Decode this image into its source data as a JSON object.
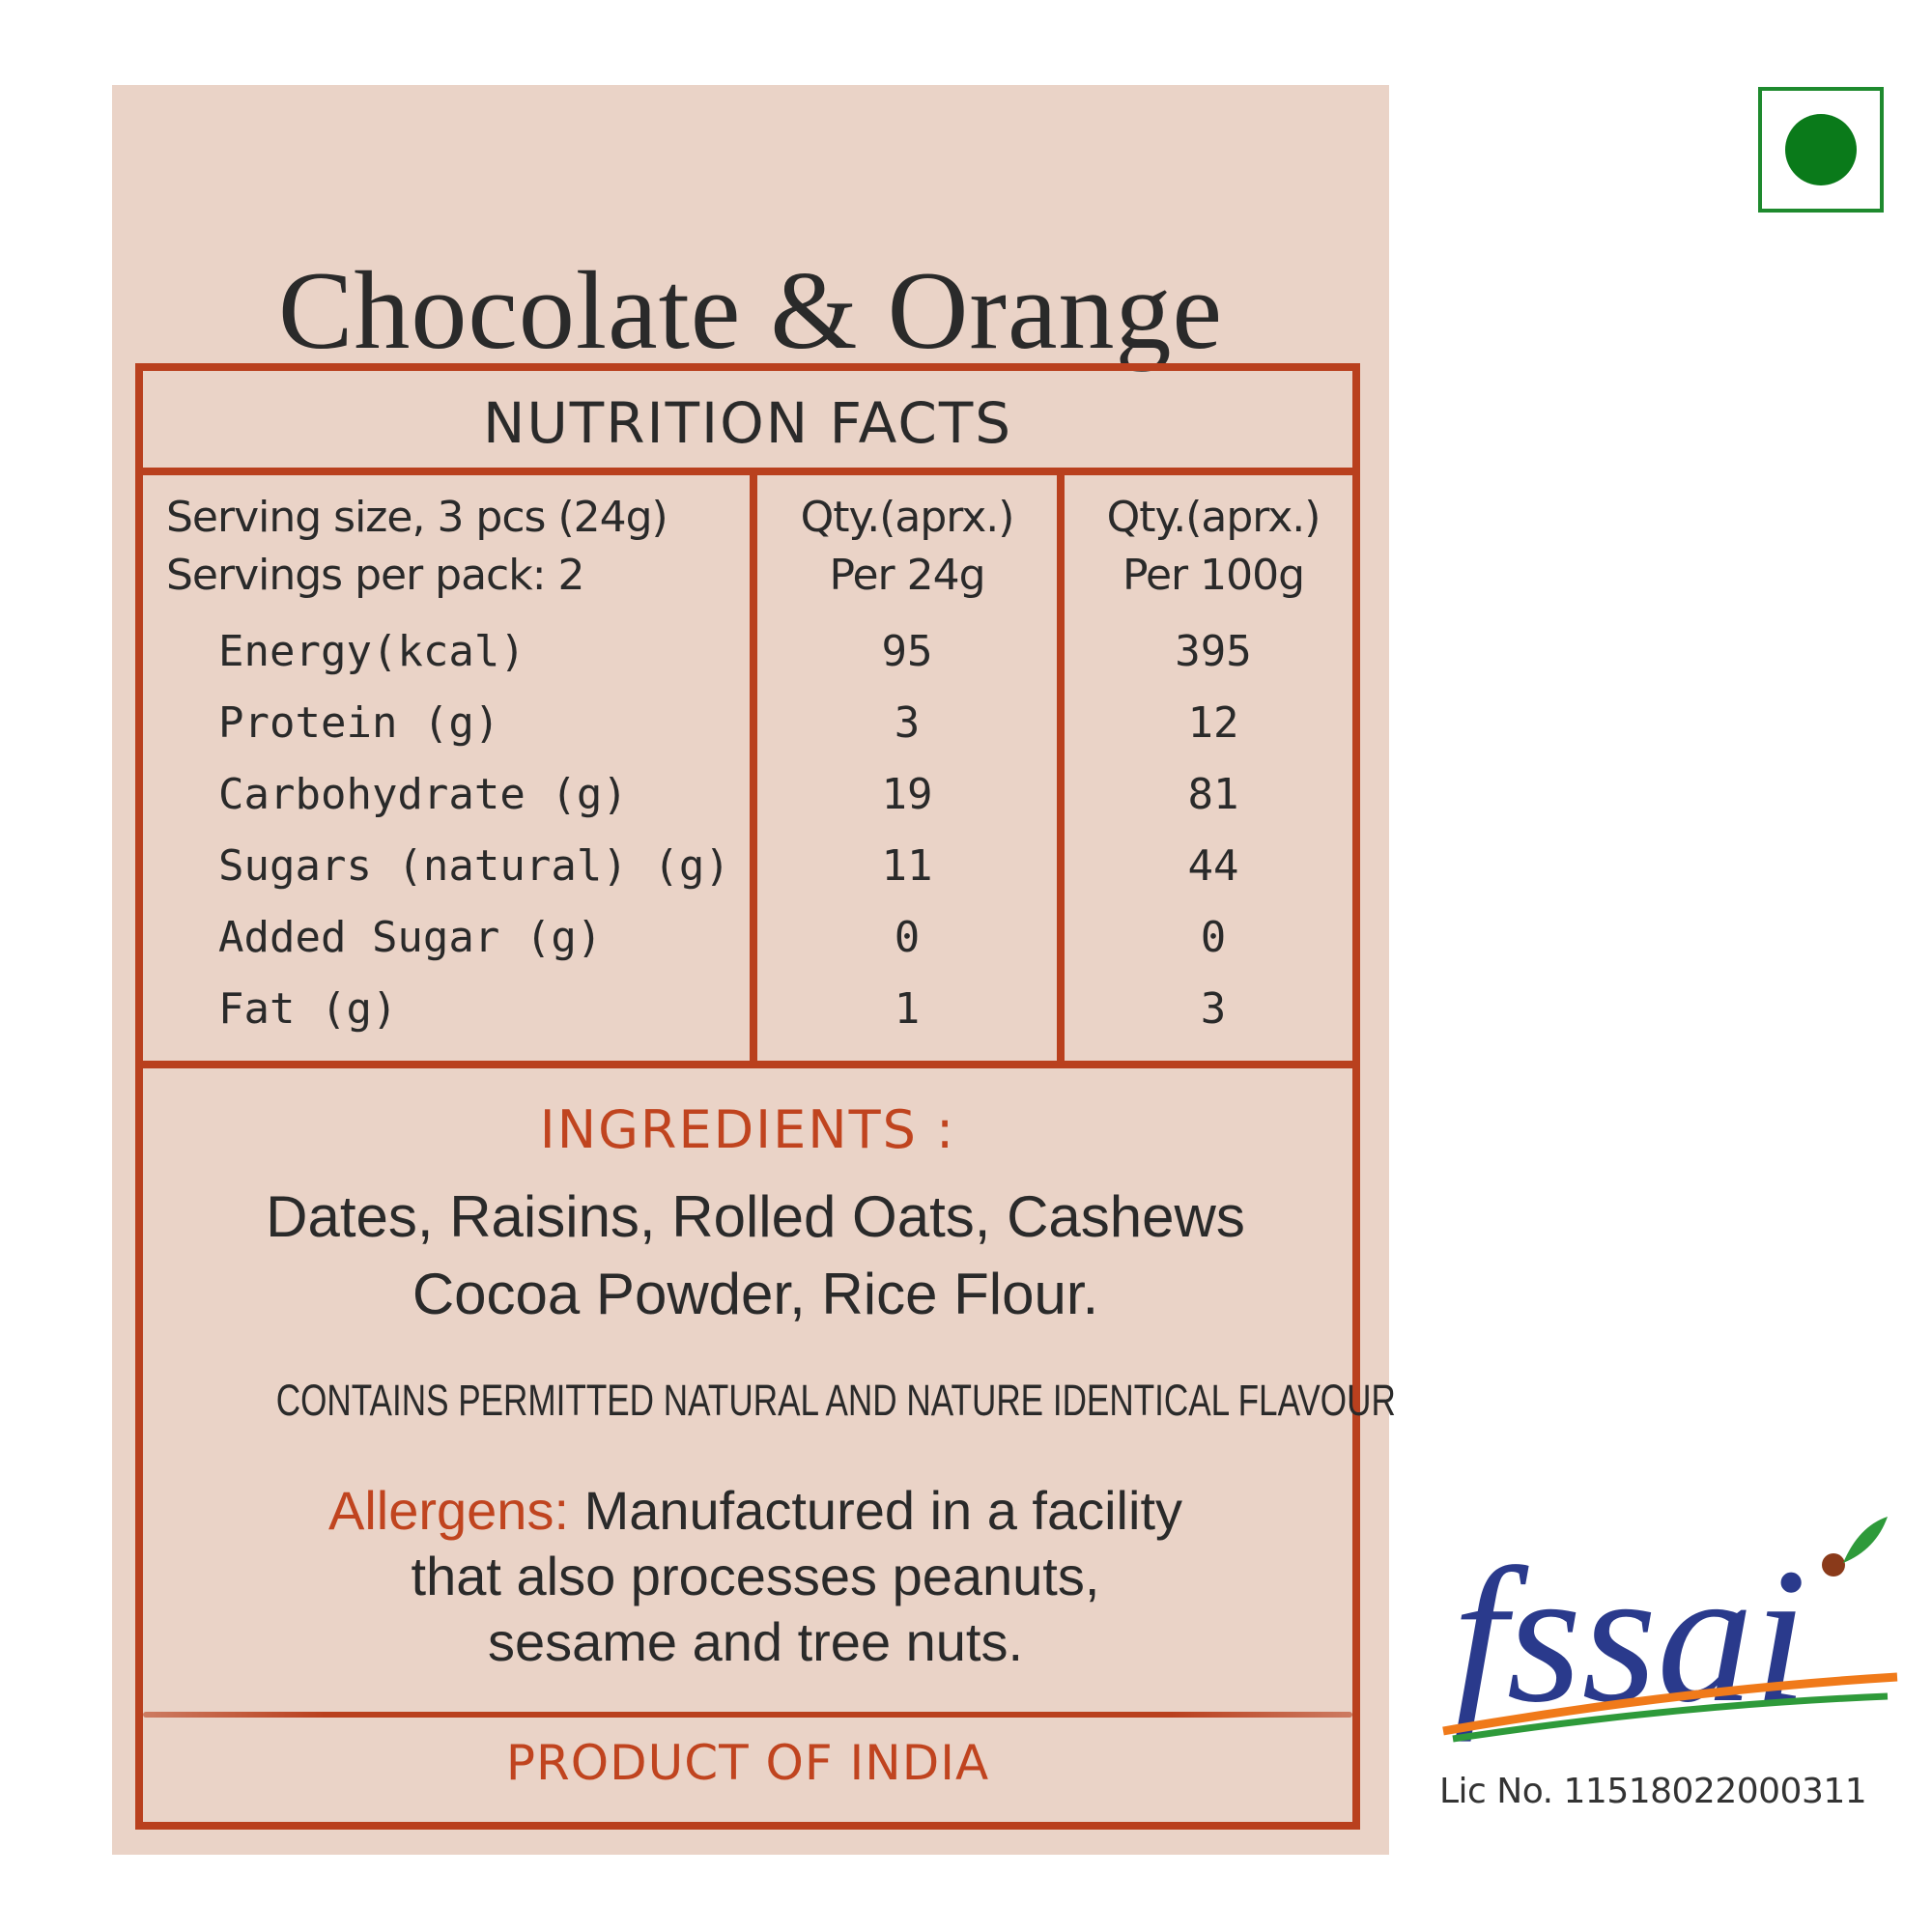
{
  "product_title": "Chocolate & Orange",
  "nutrition": {
    "header": "NUTRITION FACTS",
    "serving_size": "Serving size, 3 pcs (24g)",
    "servings_per_pack": "Servings per pack: 2",
    "col1_line1": "Qty.(aprx.)",
    "col1_line2": "Per 24g",
    "col2_line1": "Qty.(aprx.)",
    "col2_line2": "Per 100g",
    "rows": [
      {
        "name": "Energy(kcal)",
        "per24": "95",
        "per100": "395"
      },
      {
        "name": "Protein (g)",
        "per24": "3",
        "per100": "12"
      },
      {
        "name": "Carbohydrate (g)",
        "per24": "19",
        "per100": "81"
      },
      {
        "name": "Sugars (natural) (g)",
        "per24": "11",
        "per100": "44"
      },
      {
        "name": "Added Sugar (g)",
        "per24": "0",
        "per100": "0"
      },
      {
        "name": "Fat (g)",
        "per24": "1",
        "per100": "3"
      }
    ]
  },
  "ingredients": {
    "title": "INGREDIENTS :",
    "line1": "Dates, Raisins, Rolled Oats, Cashews",
    "line2": "Cocoa Powder, Rice Flour.",
    "flavour_note": "CONTAINS PERMITTED NATURAL AND NATURE IDENTICAL FLAVOUR"
  },
  "allergens": {
    "lead": "Allergens:",
    "line1": "Manufactured in a facility",
    "line2": "that also processes peanuts,",
    "line3": "sesame and tree nuts."
  },
  "origin": "PRODUCT OF INDIA",
  "fssai": {
    "logo_text": "fssai",
    "license": "Lic No. 11518022000311"
  },
  "colors": {
    "label_bg": "#ead3c7",
    "border": "#b9401e",
    "accent_text": "#c0441f",
    "veg_green": "#0a7a1a",
    "fssai_blue": "#2a3a8c",
    "fssai_orange": "#f07a1a",
    "fssai_green": "#2e9a3a"
  },
  "icons": [
    "veg-mark-icon",
    "fssai-logo-icon"
  ]
}
